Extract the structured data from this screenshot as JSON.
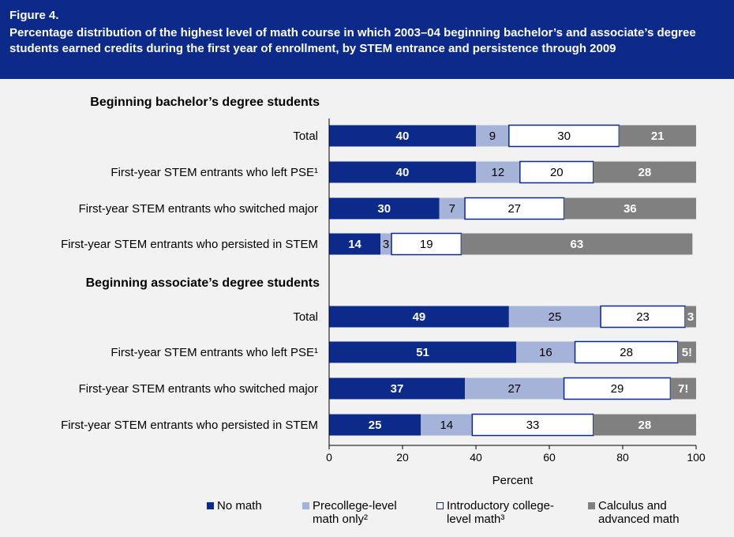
{
  "figure_label": "Figure 4.",
  "figure_title": "Percentage distribution of the highest level of math course in which 2003–04 beginning bachelor’s and associate’s degree students earned credits during the first year of enrollment, by STEM entrance and persistence through 2009",
  "colors": {
    "header_bg": "#0b2a8a",
    "no_math": "#0b2a8a",
    "precollege": "#a5b3d8",
    "introductory": "#ffffff",
    "calculus": "#808080"
  },
  "legend": [
    {
      "key": "no_math",
      "label": "No math"
    },
    {
      "key": "precollege",
      "label": "Precollege-level math only²"
    },
    {
      "key": "introductory",
      "label": "Introductory college-level math³"
    },
    {
      "key": "calculus",
      "label": "Calculus and advanced math"
    }
  ],
  "chart_data": {
    "type": "bar",
    "orientation": "horizontal",
    "stacked": true,
    "xlabel": "Percent",
    "xlim": [
      0,
      100
    ],
    "xticks": [
      "0",
      "20",
      "40",
      "60",
      "80",
      "100"
    ],
    "series_keys": [
      "no_math",
      "precollege",
      "introductory",
      "calculus"
    ],
    "groups": [
      {
        "title": "Beginning bachelor’s degree students",
        "rows": [
          {
            "label": "Total",
            "values": [
              40,
              9,
              30,
              21
            ],
            "labels": [
              "40",
              "9",
              "30",
              "21"
            ]
          },
          {
            "label": "First-year STEM entrants who left PSE¹",
            "values": [
              40,
              12,
              20,
              28
            ],
            "labels": [
              "40",
              "12",
              "20",
              "28"
            ]
          },
          {
            "label": "First-year STEM entrants who switched major",
            "values": [
              30,
              7,
              27,
              36
            ],
            "labels": [
              "30",
              "7",
              "27",
              "36"
            ]
          },
          {
            "label": "First-year STEM entrants who persisted in STEM",
            "values": [
              14,
              3,
              19,
              63
            ],
            "labels": [
              "14",
              "3",
              "19",
              "63"
            ]
          }
        ]
      },
      {
        "title": "Beginning associate’s degree students",
        "rows": [
          {
            "label": "Total",
            "values": [
              49,
              25,
              23,
              3
            ],
            "labels": [
              "49",
              "25",
              "23",
              "3"
            ]
          },
          {
            "label": "First-year STEM entrants who left PSE¹",
            "values": [
              51,
              16,
              28,
              5
            ],
            "labels": [
              "51",
              "16",
              "28",
              "5!"
            ]
          },
          {
            "label": "First-year STEM entrants who switched major",
            "values": [
              37,
              27,
              29,
              7
            ],
            "labels": [
              "37",
              "27",
              "29",
              "7!"
            ]
          },
          {
            "label": "First-year STEM entrants who persisted in STEM",
            "values": [
              25,
              14,
              33,
              28
            ],
            "labels": [
              "25",
              "14",
              "33",
              "28"
            ]
          }
        ]
      }
    ]
  }
}
